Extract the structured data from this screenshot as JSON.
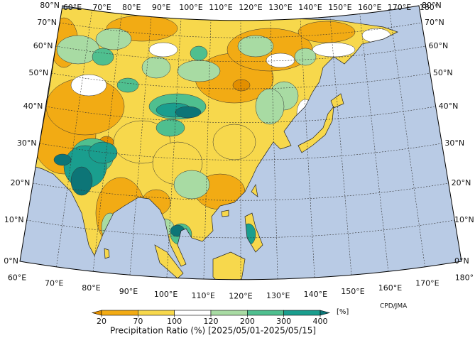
{
  "map": {
    "top_lon_labels": [
      "60°E",
      "70°E",
      "80°E",
      "90°E",
      "100°E",
      "110°E",
      "120°E",
      "130°E",
      "140°E",
      "150°E",
      "160°E",
      "170°E",
      "180°"
    ],
    "bottom_lon_labels": [
      "60°E",
      "70°E",
      "80°E",
      "90°E",
      "100°E",
      "110°E",
      "120°E",
      "130°E",
      "140°E",
      "150°E",
      "160°E",
      "170°E",
      "180°"
    ],
    "left_lat_labels": [
      "0°N",
      "10°N",
      "20°N",
      "30°N",
      "40°N",
      "50°N",
      "60°N",
      "70°N",
      "80°N"
    ],
    "right_lat_labels": [
      "0°N",
      "10°N",
      "20°N",
      "30°N",
      "40°N",
      "50°N",
      "60°N",
      "70°N",
      "80°N"
    ],
    "credit": "CPD/JMA",
    "ocean_color": "#b9cbe5"
  },
  "colorbar": {
    "title": "Precipitation Ratio (%) [2025/05/01-2025/05/15]",
    "unit": "[%]",
    "ticks": [
      20,
      70,
      100,
      120,
      200,
      300,
      400
    ],
    "colors": [
      "#e38f00",
      "#f2ab14",
      "#f7d84c",
      "#ffffff",
      "#a8dba3",
      "#4fbf8f",
      "#1a9e8e",
      "#0d7577"
    ]
  }
}
